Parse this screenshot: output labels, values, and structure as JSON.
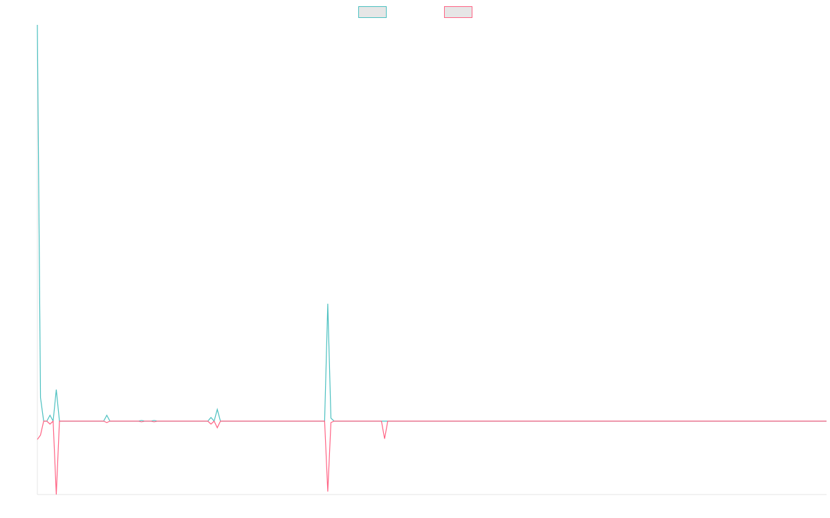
{
  "chart_data": {
    "type": "line",
    "xlim": [
      0,
      250
    ],
    "ylim": [
      -1,
      5.4
    ],
    "legend": "top",
    "series": [
      {
        "color": "#4bc0c0",
        "values": [
          5.4,
          0.32,
          0,
          0,
          0.08,
          0,
          0.43,
          0,
          0,
          0,
          0,
          0,
          0,
          0,
          0,
          0,
          0,
          0,
          0,
          0,
          0,
          0,
          0.08,
          0,
          0,
          0,
          0,
          0,
          0,
          0,
          0,
          0,
          0,
          0.01,
          0,
          0,
          0,
          0.01,
          0,
          0,
          0,
          0,
          0,
          0,
          0,
          0,
          0,
          0,
          0,
          0,
          0,
          0,
          0,
          0,
          0,
          0.05,
          0,
          0.16,
          0,
          0,
          0,
          0,
          0,
          0,
          0,
          0,
          0,
          0,
          0,
          0,
          0,
          0,
          0,
          0,
          0,
          0,
          0,
          0,
          0,
          0,
          0,
          0,
          0,
          0,
          0,
          0,
          0,
          0,
          0,
          0,
          0,
          0,
          1.6,
          0.04,
          0,
          0,
          0,
          0,
          0,
          0,
          0,
          0,
          0,
          0,
          0,
          0,
          0,
          0,
          0,
          0,
          0,
          0,
          0,
          0,
          0,
          0,
          0,
          0,
          0,
          0,
          0,
          0,
          0,
          0,
          0,
          0,
          0,
          0,
          0,
          0,
          0,
          0,
          0,
          0,
          0,
          0,
          0,
          0,
          0,
          0,
          0,
          0,
          0,
          0,
          0,
          0,
          0,
          0,
          0,
          0,
          0,
          0,
          0,
          0,
          0,
          0,
          0,
          0,
          0,
          0,
          0,
          0,
          0,
          0,
          0,
          0,
          0,
          0,
          0,
          0,
          0,
          0,
          0,
          0,
          0,
          0,
          0,
          0,
          0,
          0,
          0,
          0,
          0,
          0,
          0,
          0,
          0,
          0,
          0,
          0,
          0,
          0,
          0,
          0,
          0,
          0,
          0,
          0,
          0,
          0,
          0,
          0,
          0,
          0,
          0,
          0,
          0,
          0,
          0,
          0,
          0,
          0,
          0,
          0,
          0,
          0,
          0,
          0,
          0,
          0,
          0,
          0,
          0,
          0,
          0,
          0,
          0,
          0,
          0,
          0,
          0,
          0,
          0,
          0,
          0,
          0,
          0,
          0,
          0,
          0,
          0,
          0,
          0,
          0,
          0,
          0,
          0,
          0,
          0,
          0,
          0
        ]
      },
      {
        "color": "#ff6384",
        "values": [
          -0.25,
          -0.19,
          0,
          0,
          -0.04,
          0,
          -1,
          0,
          0,
          0,
          0,
          0,
          0,
          0,
          0,
          0,
          0,
          0,
          0,
          0,
          0,
          0,
          -0.02,
          0,
          0,
          0,
          0,
          0,
          0,
          0,
          0,
          0,
          0,
          -0.01,
          0,
          0,
          0,
          -0.01,
          0,
          0,
          0,
          0,
          0,
          0,
          0,
          0,
          0,
          0,
          0,
          0,
          0,
          0,
          0,
          0,
          0,
          -0.04,
          0,
          -0.09,
          0,
          0,
          0,
          0,
          0,
          0,
          0,
          0,
          0,
          0,
          0,
          0,
          0,
          0,
          0,
          0,
          0,
          0,
          0,
          0,
          0,
          0,
          0,
          0,
          0,
          0,
          0,
          0,
          0,
          0,
          0,
          0,
          0,
          0,
          -0.96,
          -0.02,
          0,
          0,
          0,
          0,
          0,
          0,
          0,
          0,
          0,
          0,
          0,
          0,
          0,
          0,
          0,
          0,
          -0.24,
          0,
          0,
          0,
          0,
          0,
          0,
          0,
          0,
          0,
          0,
          0,
          0,
          0,
          0,
          0,
          0,
          0,
          0,
          0,
          0,
          0,
          0,
          0,
          0,
          0,
          0,
          0,
          0,
          0,
          0,
          0,
          0,
          0,
          0,
          0,
          0,
          0,
          0,
          0,
          0,
          0,
          0,
          0,
          0,
          0,
          0,
          0,
          0,
          0,
          0,
          0,
          0,
          0,
          0,
          0,
          0,
          0,
          0,
          0,
          0,
          0,
          0,
          0,
          0,
          0,
          0,
          0,
          0,
          0,
          0,
          0,
          0,
          0,
          0,
          0,
          0,
          0,
          0,
          0,
          0,
          0,
          0,
          0,
          0,
          0,
          0,
          0,
          0,
          0,
          0,
          0,
          0,
          0,
          0,
          0,
          0,
          0,
          0,
          0,
          0,
          0,
          0,
          0,
          0,
          0,
          0,
          0,
          0,
          0,
          0,
          0,
          0,
          0,
          0,
          0,
          0,
          0,
          0,
          0,
          0,
          0,
          0,
          0,
          0,
          0,
          0,
          0,
          0,
          0,
          0,
          0,
          0,
          0,
          0,
          0,
          0,
          0,
          0,
          0,
          0
        ]
      }
    ]
  }
}
